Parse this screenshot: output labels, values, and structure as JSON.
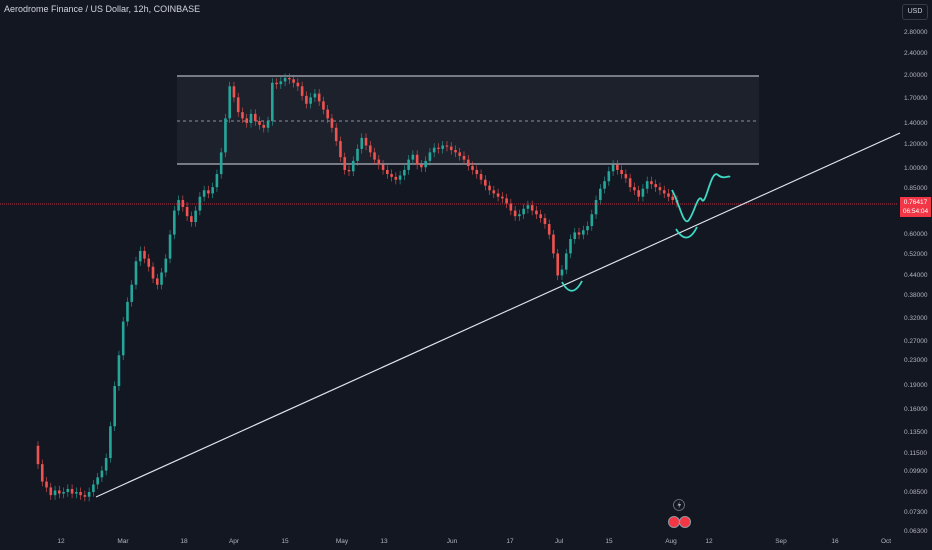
{
  "header": {
    "title": "Aerodrome Finance / US Dollar, 12h, COINBASE",
    "currency": "USD"
  },
  "last_price": {
    "value": "0.76417",
    "countdown": "06:54:04"
  },
  "colors": {
    "background": "#131722",
    "up": "#26a69a",
    "down": "#ef5350",
    "line": "#e0e3eb",
    "price_line": "#f23645",
    "drawing": "#3ed8c3",
    "text": "#b2b5be"
  },
  "chart_data": {
    "type": "candlestick",
    "title": "Aerodrome Finance / US Dollar, 12h, COINBASE",
    "y_scale": "log",
    "y_ticks": [
      "2.80000",
      "2.40000",
      "2.00000",
      "1.70000",
      "1.40000",
      "1.20000",
      "1.00000",
      "0.85000",
      "0.70000",
      "0.60000",
      "0.52000",
      "0.44000",
      "0.38000",
      "0.32000",
      "0.27000",
      "0.23000",
      "0.19000",
      "0.16000",
      "0.13500",
      "0.11500",
      "0.09900",
      "0.08500",
      "0.07300",
      "0.06300"
    ],
    "x_ticks": [
      "12",
      "Mar",
      "18",
      "Apr",
      "15",
      "May",
      "13",
      "Jun",
      "17",
      "Jul",
      "15",
      "Aug",
      "12",
      "Sep",
      "16",
      "Oct"
    ],
    "series": {
      "close": [
        0.105,
        0.092,
        0.088,
        0.083,
        0.086,
        0.084,
        0.085,
        0.087,
        0.084,
        0.085,
        0.083,
        0.082,
        0.085,
        0.09,
        0.095,
        0.1,
        0.11,
        0.14,
        0.19,
        0.24,
        0.31,
        0.36,
        0.41,
        0.49,
        0.53,
        0.5,
        0.47,
        0.43,
        0.41,
        0.45,
        0.5,
        0.6,
        0.72,
        0.78,
        0.74,
        0.69,
        0.66,
        0.72,
        0.8,
        0.84,
        0.82,
        0.86,
        0.95,
        1.12,
        1.45,
        1.85,
        1.7,
        1.52,
        1.45,
        1.4,
        1.5,
        1.42,
        1.38,
        1.35,
        1.42,
        1.9,
        1.88,
        1.92,
        1.97,
        1.95,
        1.9,
        1.85,
        1.72,
        1.62,
        1.7,
        1.75,
        1.65,
        1.55,
        1.45,
        1.35,
        1.22,
        1.08,
        0.98,
        0.97,
        1.05,
        1.15,
        1.25,
        1.18,
        1.12,
        1.06,
        1.02,
        0.98,
        0.95,
        0.93,
        0.91,
        0.94,
        0.98,
        1.06,
        1.1,
        1.02,
        1.0,
        1.05,
        1.12,
        1.16,
        1.15,
        1.18,
        1.17,
        1.14,
        1.12,
        1.09,
        1.06,
        1.01,
        0.98,
        0.95,
        0.91,
        0.87,
        0.84,
        0.82,
        0.8,
        0.79,
        0.76,
        0.72,
        0.69,
        0.7,
        0.73,
        0.75,
        0.72,
        0.7,
        0.68,
        0.65,
        0.6,
        0.52,
        0.44,
        0.46,
        0.52,
        0.58,
        0.61,
        0.6,
        0.62,
        0.64,
        0.7,
        0.78,
        0.85,
        0.9,
        0.97,
        1.02,
        0.98,
        0.95,
        0.92,
        0.86,
        0.84,
        0.8,
        0.85,
        0.9,
        0.88,
        0.86,
        0.84,
        0.82,
        0.8,
        0.78,
        0.764
      ]
    },
    "trendline": {
      "from": [
        "Feb 25",
        0.083
      ],
      "to": [
        "Oct 4",
        1.27
      ]
    },
    "range_levels": [
      2.0,
      1.42,
      1.02
    ]
  }
}
